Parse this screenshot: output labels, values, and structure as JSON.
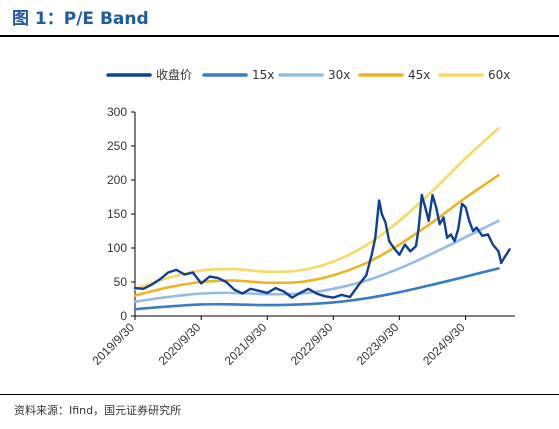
{
  "header": {
    "title": "图 1：P/E Band"
  },
  "footer": {
    "source": "资料来源：Ifind，国元证券研究所"
  },
  "colors": {
    "title": "#1f5aa6",
    "close": "#0d3f97",
    "pe15": "#3a7cc3",
    "pe30": "#95bde3",
    "pe45": "#f0b320",
    "pe60": "#f7d965"
  },
  "chart_data": {
    "type": "line",
    "title": "",
    "xlabel": "",
    "ylabel": "",
    "ylim": [
      0,
      300
    ],
    "yticks": [
      0,
      50,
      100,
      150,
      200,
      250,
      300
    ],
    "xlim": [
      "2019/9/30",
      "2025/6/30"
    ],
    "xticks": [
      "2019/9/30",
      "2020/9/30",
      "2021/9/30",
      "2022/9/30",
      "2023/9/30",
      "2024/9/30"
    ],
    "grid": false,
    "legend": "top",
    "series": [
      {
        "name": "收盘价",
        "color": "#0d3f97",
        "points": [
          [
            "2019/9/30",
            41
          ],
          [
            "2019/11/15",
            40
          ],
          [
            "2019/12/31",
            46
          ],
          [
            "2020/2/15",
            54
          ],
          [
            "2020/3/31",
            64
          ],
          [
            "2020/5/15",
            68
          ],
          [
            "2020/6/30",
            61
          ],
          [
            "2020/8/15",
            64
          ],
          [
            "2020/9/30",
            48
          ],
          [
            "2020/11/15",
            58
          ],
          [
            "2020/12/31",
            56
          ],
          [
            "2021/2/15",
            50
          ],
          [
            "2021/3/31",
            39
          ],
          [
            "2021/5/15",
            33
          ],
          [
            "2021/6/30",
            40
          ],
          [
            "2021/8/15",
            37
          ],
          [
            "2021/9/30",
            34
          ],
          [
            "2021/11/15",
            41
          ],
          [
            "2021/12/31",
            36
          ],
          [
            "2022/2/15",
            27
          ],
          [
            "2022/3/31",
            34
          ],
          [
            "2022/5/15",
            40
          ],
          [
            "2022/6/30",
            33
          ],
          [
            "2022/8/15",
            29
          ],
          [
            "2022/9/30",
            27
          ],
          [
            "2022/11/15",
            31
          ],
          [
            "2022/12/31",
            28
          ],
          [
            "2023/2/15",
            45
          ],
          [
            "2023/3/31",
            60
          ],
          [
            "2023/4/30",
            90
          ],
          [
            "2023/5/20",
            115
          ],
          [
            "2023/6/10",
            170
          ],
          [
            "2023/6/25",
            150
          ],
          [
            "2023/7/15",
            138
          ],
          [
            "2023/8/5",
            110
          ],
          [
            "2023/8/31",
            100
          ],
          [
            "2023/9/30",
            90
          ],
          [
            "2023/10/31",
            105
          ],
          [
            "2023/11/30",
            95
          ],
          [
            "2023/12/31",
            103
          ],
          [
            "2024/1/15",
            130
          ],
          [
            "2024/2/1",
            178
          ],
          [
            "2024/2/20",
            160
          ],
          [
            "2024/3/10",
            140
          ],
          [
            "2024/3/31",
            178
          ],
          [
            "2024/4/20",
            160
          ],
          [
            "2024/5/10",
            135
          ],
          [
            "2024/5/31",
            145
          ],
          [
            "2024/6/20",
            115
          ],
          [
            "2024/7/10",
            120
          ],
          [
            "2024/7/31",
            110
          ],
          [
            "2024/8/20",
            128
          ],
          [
            "2024/9/10",
            165
          ],
          [
            "2024/9/30",
            160
          ],
          [
            "2024/10/20",
            140
          ],
          [
            "2024/11/10",
            125
          ],
          [
            "2024/11/30",
            130
          ],
          [
            "2024/12/31",
            118
          ],
          [
            "2025/1/31",
            120
          ],
          [
            "2025/2/28",
            105
          ],
          [
            "2025/3/31",
            95
          ],
          [
            "2025/4/15",
            78
          ],
          [
            "2025/4/30",
            85
          ],
          [
            "2025/5/31",
            98
          ]
        ]
      },
      {
        "name": "15x",
        "color": "#3a7cc3",
        "points": [
          [
            "2019/9/30",
            10
          ],
          [
            "2020/3/31",
            14
          ],
          [
            "2020/9/30",
            17
          ],
          [
            "2021/3/31",
            17
          ],
          [
            "2021/9/30",
            16
          ],
          [
            "2022/3/31",
            17
          ],
          [
            "2022/9/30",
            20
          ],
          [
            "2023/3/31",
            26
          ],
          [
            "2023/9/30",
            35
          ],
          [
            "2024/3/31",
            46
          ],
          [
            "2024/9/30",
            58
          ],
          [
            "2025/3/31",
            70
          ]
        ]
      },
      {
        "name": "30x",
        "color": "#95bde3",
        "points": [
          [
            "2019/9/30",
            21
          ],
          [
            "2020/3/31",
            28
          ],
          [
            "2020/9/30",
            33
          ],
          [
            "2021/3/31",
            34
          ],
          [
            "2021/9/30",
            32
          ],
          [
            "2022/3/31",
            33
          ],
          [
            "2022/9/30",
            40
          ],
          [
            "2023/3/31",
            52
          ],
          [
            "2023/9/30",
            70
          ],
          [
            "2024/3/31",
            92
          ],
          [
            "2024/9/30",
            116
          ],
          [
            "2025/3/31",
            140
          ]
        ]
      },
      {
        "name": "45x",
        "color": "#f0b320",
        "points": [
          [
            "2019/9/30",
            30
          ],
          [
            "2020/3/31",
            42
          ],
          [
            "2020/9/30",
            50
          ],
          [
            "2021/3/31",
            52
          ],
          [
            "2021/9/30",
            49
          ],
          [
            "2022/3/31",
            50
          ],
          [
            "2022/9/30",
            60
          ],
          [
            "2023/3/31",
            78
          ],
          [
            "2023/9/30",
            105
          ],
          [
            "2024/3/31",
            138
          ],
          [
            "2024/9/30",
            174
          ],
          [
            "2025/3/31",
            207
          ]
        ]
      },
      {
        "name": "60x",
        "color": "#f7d965",
        "points": [
          [
            "2019/9/30",
            40
          ],
          [
            "2020/3/31",
            56
          ],
          [
            "2020/9/30",
            67
          ],
          [
            "2021/3/31",
            69
          ],
          [
            "2021/9/30",
            65
          ],
          [
            "2022/3/31",
            67
          ],
          [
            "2022/9/30",
            80
          ],
          [
            "2023/3/31",
            104
          ],
          [
            "2023/9/30",
            140
          ],
          [
            "2024/3/31",
            184
          ],
          [
            "2024/9/30",
            232
          ],
          [
            "2025/3/31",
            276
          ]
        ]
      }
    ]
  }
}
